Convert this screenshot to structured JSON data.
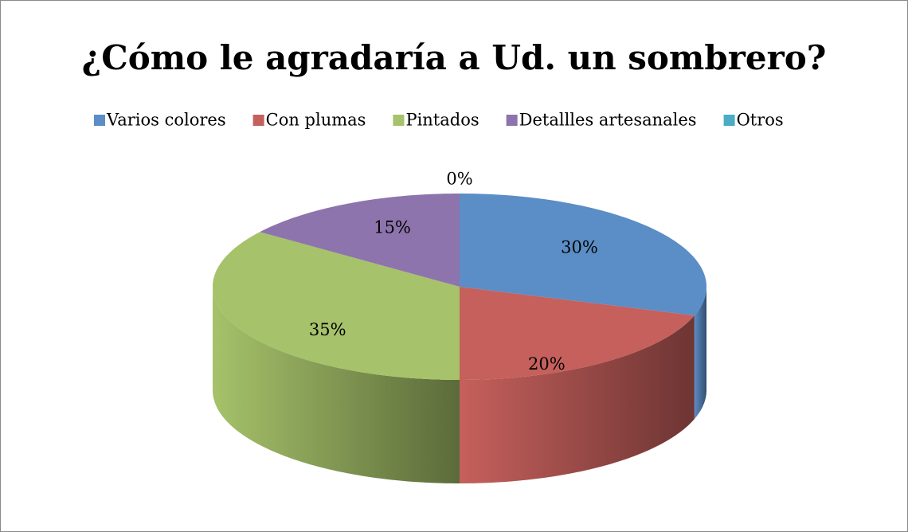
{
  "chart_data": {
    "type": "pie3d",
    "title": "¿Cómo le agradaría a Ud. un sombrero?",
    "categories": [
      "Varios colores",
      "Con plumas",
      "Pintados",
      "Detallles artesanales",
      "Otros"
    ],
    "values": [
      30,
      20,
      35,
      15,
      0
    ],
    "value_labels": [
      "30%",
      "20%",
      "35%",
      "15%",
      "0%"
    ],
    "colors": [
      "#5b8dc6",
      "#c6605c",
      "#a6c26a",
      "#8e74ad",
      "#4bacc6"
    ],
    "legend": "top"
  }
}
